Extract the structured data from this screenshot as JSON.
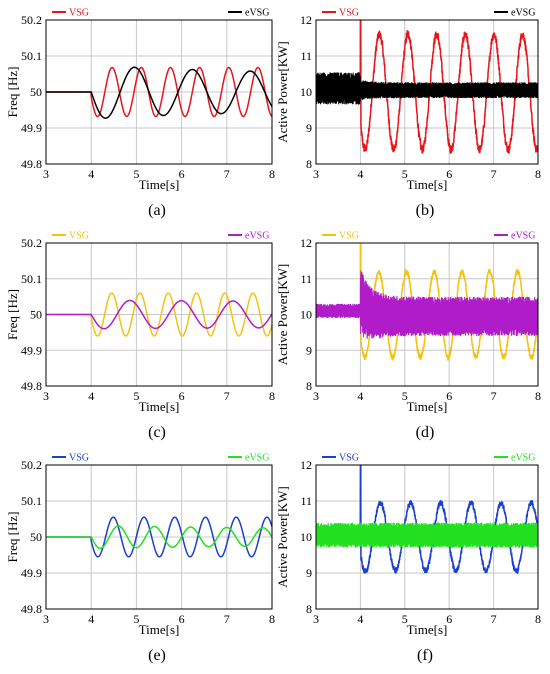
{
  "chart_data": [
    {
      "type": "line",
      "caption": "(a)",
      "xlabel": "Time[s]",
      "ylabel": "Freq [Hz]",
      "xlim": [
        3,
        8
      ],
      "ylim": [
        49.8,
        50.2
      ],
      "xticks": [
        "3",
        "4",
        "5",
        "6",
        "7",
        "8"
      ],
      "yticks": [
        "49.8",
        "49.9",
        "50",
        "50.1",
        "50.2"
      ],
      "grid": true,
      "legend": "top",
      "series": [
        {
          "name": "VSG",
          "color": "#e8141c",
          "model": "sine",
          "params": {
            "base": 50,
            "t0": 4.0,
            "A0": 0.068,
            "A1": 0.07,
            "decay": 0.0,
            "period": 0.645,
            "phase0": 0.2,
            "ripple": 0
          }
        },
        {
          "name": "eVSG",
          "color": "#000000",
          "model": "sine",
          "params": {
            "base": 50,
            "t0": 4.0,
            "A0": 0.075,
            "A1": 0.048,
            "decay": 0.28,
            "period": 1.28,
            "phase0": 0,
            "ripple": 0
          }
        }
      ]
    },
    {
      "type": "line",
      "caption": "(b)",
      "xlabel": "Time[s]",
      "ylabel": "Active Power[KW]",
      "xlim": [
        3,
        8
      ],
      "ylim": [
        8,
        12
      ],
      "xticks": [
        "3",
        "4",
        "5",
        "6",
        "7",
        "8"
      ],
      "yticks": [
        "8",
        "9",
        "10",
        "11",
        "12"
      ],
      "grid": true,
      "legend": "top",
      "series": [
        {
          "name": "VSG",
          "color": "#e8141c",
          "model": "sine",
          "params": {
            "base": 10,
            "t0": 4.0,
            "A0": 1.6,
            "A1": 1.6,
            "decay": 0.0,
            "period": 0.645,
            "phase0": 0.55,
            "spike": 12.0,
            "ripple": 0.12
          }
        },
        {
          "name": "eVSG",
          "color": "#000000",
          "model": "ripple",
          "params": {
            "base": 10.05,
            "t0": 4.0,
            "pre_base": 10.1,
            "pre_band": 0.45,
            "post_band": 0.22,
            "settle": 0.12
          }
        }
      ]
    },
    {
      "type": "line",
      "caption": "(c)",
      "xlabel": "Time[s]",
      "ylabel": "Freq [Hz]",
      "xlim": [
        3,
        8
      ],
      "ylim": [
        49.8,
        50.2
      ],
      "xticks": [
        "3",
        "4",
        "5",
        "6",
        "7",
        "8"
      ],
      "yticks": [
        "49.8",
        "49.9",
        "50",
        "50.1",
        "50.2"
      ],
      "grid": true,
      "legend": "top",
      "series": [
        {
          "name": "VSG",
          "color": "#f5c211",
          "model": "sine",
          "params": {
            "base": 50,
            "t0": 4.0,
            "A0": 0.06,
            "A1": 0.06,
            "decay": 0.0,
            "period": 0.625,
            "phase0": 0.15,
            "ripple": 0
          }
        },
        {
          "name": "eVSG",
          "color": "#b01cc9",
          "model": "sine",
          "params": {
            "base": 50,
            "t0": 4.0,
            "A0": 0.04,
            "A1": 0.032,
            "decay": 0.1,
            "period": 1.14,
            "phase0": 0,
            "ripple": 0
          }
        }
      ]
    },
    {
      "type": "line",
      "caption": "(d)",
      "xlabel": "Time[s]",
      "ylabel": "Active Power[KW]",
      "xlim": [
        3,
        8
      ],
      "ylim": [
        8,
        12
      ],
      "xticks": [
        "3",
        "4",
        "5",
        "6",
        "7",
        "8"
      ],
      "yticks": [
        "8",
        "9",
        "10",
        "11",
        "12"
      ],
      "grid": true,
      "legend": "top",
      "series": [
        {
          "name": "VSG",
          "color": "#f5c211",
          "model": "sine",
          "params": {
            "base": 10,
            "t0": 4.0,
            "A0": 1.2,
            "A1": 1.2,
            "decay": 0.0,
            "period": 0.625,
            "phase0": 0.55,
            "spike": 12.0,
            "ripple": 0.08
          }
        },
        {
          "name": "eVSG",
          "color": "#b01cc9",
          "model": "ripple",
          "params": {
            "base": 9.95,
            "t0": 4.0,
            "pre_base": 10.1,
            "pre_band": 0.2,
            "post_band": 0.55,
            "settle": 0.8,
            "peak": 10.7
          }
        }
      ]
    },
    {
      "type": "line",
      "caption": "(e)",
      "xlabel": "Time[s]",
      "ylabel": "Freq [Hz]",
      "xlim": [
        3,
        8
      ],
      "ylim": [
        49.8,
        50.2
      ],
      "xticks": [
        "3",
        "4",
        "5",
        "6",
        "7",
        "8"
      ],
      "yticks": [
        "49.8",
        "49.9",
        "50",
        "50.1",
        "50.2"
      ],
      "grid": true,
      "legend": "top",
      "series": [
        {
          "name": "VSG",
          "color": "#1a3fd1",
          "model": "sine",
          "params": {
            "base": 50,
            "t0": 4.0,
            "A0": 0.055,
            "A1": 0.055,
            "decay": 0.0,
            "period": 0.68,
            "phase0": 0.2,
            "ripple": 0
          }
        },
        {
          "name": "eVSG",
          "color": "#22e01f",
          "model": "sine",
          "params": {
            "base": 50,
            "t0": 4.0,
            "A0": 0.032,
            "A1": 0.017,
            "decay": 0.15,
            "period": 0.8,
            "phase0": 0,
            "ripple": 0
          }
        }
      ]
    },
    {
      "type": "line",
      "caption": "(f)",
      "xlabel": "Time[s]",
      "ylabel": "Active Power[KW]",
      "xlim": [
        3,
        8
      ],
      "ylim": [
        8,
        12
      ],
      "xticks": [
        "3",
        "4",
        "5",
        "6",
        "7",
        "8"
      ],
      "yticks": [
        "8",
        "9",
        "10",
        "11",
        "12"
      ],
      "grid": true,
      "legend": "top",
      "series": [
        {
          "name": "VSG",
          "color": "#1a3fd1",
          "model": "sine",
          "params": {
            "base": 10,
            "t0": 4.0,
            "A0": 0.95,
            "A1": 0.95,
            "decay": 0.0,
            "period": 0.68,
            "phase0": 0.55,
            "spike": 12.0,
            "ripple": 0.08
          }
        },
        {
          "name": "eVSG",
          "color": "#22e01f",
          "model": "ripple",
          "params": {
            "base": 10.05,
            "t0": 4.0,
            "pre_base": 10.05,
            "pre_band": 0.35,
            "post_band": 0.35,
            "settle": 0.0
          }
        }
      ]
    }
  ]
}
